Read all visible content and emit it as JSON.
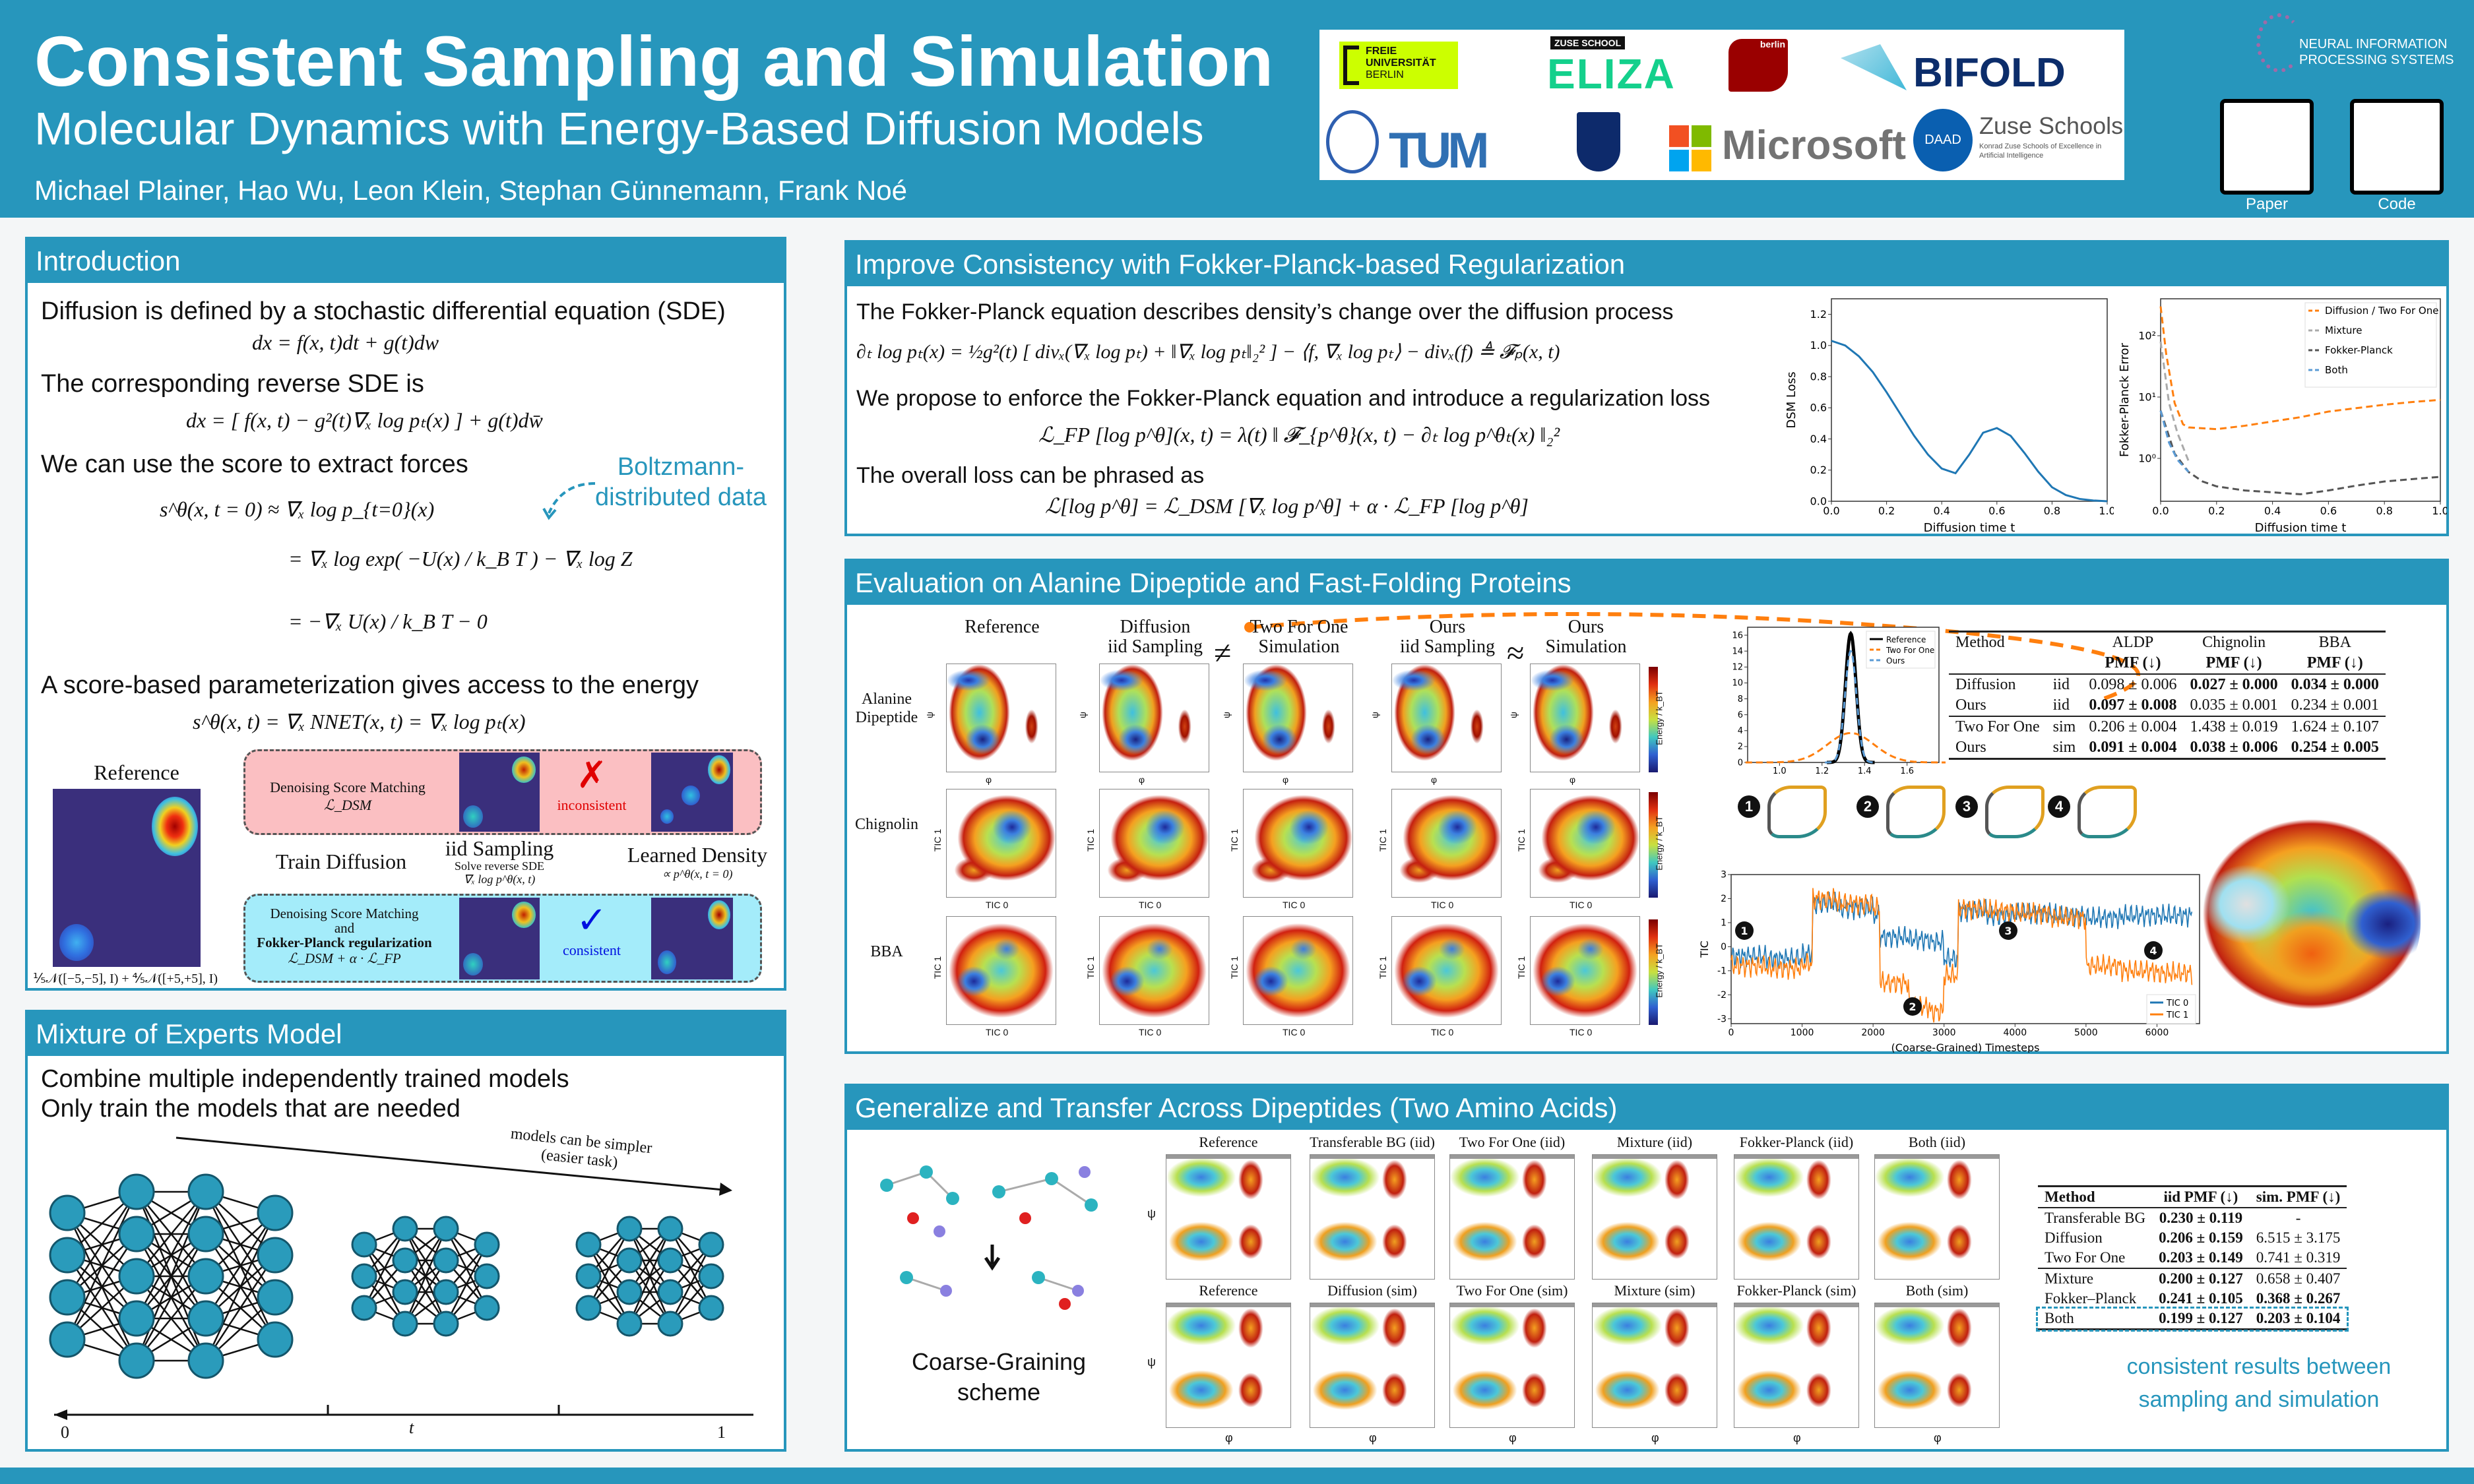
{
  "header": {
    "title": "Consistent Sampling and Simulation",
    "subtitle": "Molecular Dynamics with Energy-Based Diffusion Models",
    "authors": "Michael Plainer, Hao Wu, Leon Klein, Stephan Günnemann, Frank Noé",
    "logos": [
      "FREIE UNIVERSITÄT BERLIN",
      "ZUSE SCHOOL ELIZA",
      "TU berlin",
      "BIFOLD",
      "Shanghai Jiao Tong University",
      "TUM",
      "Rice",
      "Microsoft",
      "DAAD",
      "Zuse Schools",
      "Konrad Zuse Schools of Excellence in Artificial Intelligence",
      "NEURAL INFORMATION PROCESSING SYSTEMS"
    ],
    "qr": [
      {
        "label": "Paper"
      },
      {
        "label": "Code"
      }
    ]
  },
  "intro": {
    "title": "Introduction",
    "l1": "Diffusion is defined by a stochastic differential equation (SDE)",
    "eq1": "dx = f(x, t)dt + g(t)dw",
    "l2": "The corresponding reverse SDE is",
    "eq2": "dx = [ f(x, t) − g²(t)∇ₓ log pₜ(x) ] + g(t)dw̄",
    "l3": "We can use the score to extract forces",
    "boltz": "Boltzmann-\ndistributed data",
    "eq3a": "s^θ(x, t = 0) ≈ ∇ₓ log p_{t=0}(x)",
    "eq3b": "= ∇ₓ log exp( −U(x) / k_B T ) − ∇ₓ log Z",
    "eq3c": "= −∇ₓ U(x) / k_B T − 0",
    "l4": "A score-based parameterization gives access to the energy",
    "eq4": "s^θ(x, t) = ∇ₓ NNET(x, t) = ∇ₓ log pₜ(x)",
    "diagram": {
      "reference": "Reference",
      "mixture": "⅕𝒩([−5,−5], I) + ⅘𝒩([+5,+5], I)",
      "top_box": "Denoising Score Matching",
      "top_loss": "ℒ_DSM",
      "inconsistent": "inconsistent",
      "train": "Train Diffusion",
      "iid": "iid Sampling",
      "iid_sub1": "Solve reverse SDE",
      "iid_sub2": "∇ₓ log p^θ(x, t)",
      "learned": "Learned Density",
      "learned_sub": "∝ p^θ(x, t = 0)",
      "bot_box1": "Denoising Score Matching",
      "bot_box2": "and",
      "bot_box3": "Fokker-Planck regularization",
      "bot_loss": "ℒ_DSM + α · ℒ_FP",
      "consistent": "consistent",
      "cross": "✗",
      "check": "✓"
    }
  },
  "moe": {
    "title": "Mixture of Experts Model",
    "l1": "Combine multiple independently trained models",
    "l2": "Only train the models that are needed",
    "arrow_label": "models can be simpler\n(easier task)",
    "axis": {
      "start": "0",
      "mid": "t",
      "end": "1"
    }
  },
  "fp": {
    "title": "Improve Consistency with Fokker-Planck-based Regularization",
    "l1": "The Fokker-Planck equation describes density’s change over the diffusion process",
    "eq1": "∂ₜ log pₜ(x) = ½g²(t) [ divₓ(∇ₓ log pₜ) + ‖∇ₓ log pₜ‖₂² ] − ⟨f, ∇ₓ log pₜ⟩ − divₓ(f) ≜ 𝓕ₚ(x, t)",
    "l2": "We propose to enforce the Fokker-Planck equation and introduce a regularization loss",
    "eq2": "ℒ_FP [log p^θ](x, t) = λ(t) ‖ 𝓕_{p^θ}(x, t) − ∂ₜ log p^θₜ(x) ‖₂²",
    "l3": "The overall loss can be phrased as",
    "eq3": "ℒ[log p^θ] = ℒ_DSM [∇ₓ log p^θ] + α · ℒ_FP [log p^θ]"
  },
  "eval": {
    "title": "Evaluation on Alanine Dipeptide and Fast-Folding Proteins",
    "cols": [
      "Reference",
      "Diffusion\niid Sampling",
      "Two For One\nSimulation",
      "Ours\niid Sampling",
      "Ours\nSimulation"
    ],
    "neq": "≠",
    "approx": "≈",
    "rows": [
      "Alanine\nDipeptide",
      "Chignolin",
      "BBA"
    ],
    "ala_axes": {
      "x": "φ",
      "y": "ψ"
    },
    "tic_axes": {
      "x": "TIC 0",
      "y": "TIC 1"
    },
    "cbar_label": "Energy / k_BT",
    "table": {
      "head": [
        "Method",
        "",
        "ALDP",
        "Chignolin",
        "BBA"
      ],
      "sub": "PMF (↓)",
      "rows": [
        {
          "m": "Diffusion",
          "s": "iid",
          "v": [
            "0.098 ± 0.006",
            "0.027 ± 0.000",
            "0.034 ± 0.000"
          ],
          "bold": [
            false,
            true,
            true
          ]
        },
        {
          "m": "Ours",
          "s": "iid",
          "v": [
            "0.097 ± 0.008",
            "0.035 ± 0.001",
            "0.234 ± 0.001"
          ],
          "bold": [
            true,
            false,
            false
          ]
        },
        {
          "m": "Two For One",
          "s": "sim",
          "v": [
            "0.206 ± 0.004",
            "1.438 ± 0.019",
            "1.624 ± 0.107"
          ],
          "bold": [
            false,
            false,
            false
          ]
        },
        {
          "m": "Ours",
          "s": "sim",
          "v": [
            "0.091 ± 0.004",
            "0.038 ± 0.006",
            "0.254 ± 0.005"
          ],
          "bold": [
            true,
            true,
            true
          ]
        }
      ]
    },
    "markers": [
      "1",
      "2",
      "3",
      "4"
    ]
  },
  "gen": {
    "title": "Generalize and Transfer Across Dipeptides (Two Amino Acids)",
    "cg": "Coarse-Graining\nscheme",
    "row1": [
      "Reference",
      "Transferable BG (iid)",
      "Two For One (iid)",
      "Mixture (iid)",
      "Fokker-Planck (iid)",
      "Both (iid)"
    ],
    "row2": [
      "Reference",
      "Diffusion (sim)",
      "Two For One (sim)",
      "Mixture (sim)",
      "Fokker-Planck (sim)",
      "Both (sim)"
    ],
    "axes": {
      "x": "φ",
      "y": "ψ"
    },
    "table": {
      "head": [
        "Method",
        "iid PMF (↓)",
        "sim. PMF (↓)"
      ],
      "rows": [
        {
          "m": "Transferable BG",
          "a": "0.230 ± 0.119",
          "b": "-",
          "ba": true,
          "bb": false
        },
        {
          "m": "Diffusion",
          "a": "0.206 ± 0.159",
          "b": "6.515 ± 3.175",
          "ba": true,
          "bb": false
        },
        {
          "m": "Two For One",
          "a": "0.203 ± 0.149",
          "b": "0.741 ± 0.319",
          "ba": true,
          "bb": false
        },
        {
          "m": "Mixture",
          "a": "0.200 ± 0.127",
          "b": "0.658 ± 0.407",
          "ba": true,
          "bb": false
        },
        {
          "m": "Fokker–Planck",
          "a": "0.241 ± 0.105",
          "b": "0.368 ± 0.267",
          "ba": true,
          "bb": true
        },
        {
          "m": "Both",
          "a": "0.199 ± 0.127",
          "b": "0.203 ± 0.104",
          "ba": true,
          "bb": true
        }
      ]
    },
    "caption": "consistent results between\nsampling and simulation"
  },
  "chart_data": [
    {
      "id": "dsm",
      "type": "line",
      "xlabel": "Diffusion time t",
      "ylabel": "DSM Loss",
      "xlim": [
        0,
        1
      ],
      "ylim": [
        0,
        1.3
      ],
      "xticks": [
        0,
        0.2,
        0.4,
        0.6,
        0.8,
        1.0
      ],
      "yticks": [
        0,
        0.2,
        0.4,
        0.6,
        0.8,
        1.0,
        1.2
      ],
      "series": [
        {
          "name": "DSM Loss",
          "color": "#1f77b4",
          "x": [
            0,
            0.05,
            0.1,
            0.15,
            0.2,
            0.25,
            0.3,
            0.35,
            0.4,
            0.45,
            0.5,
            0.55,
            0.6,
            0.65,
            0.7,
            0.75,
            0.8,
            0.85,
            0.9,
            0.95,
            1.0
          ],
          "y": [
            1.03,
            1.0,
            0.93,
            0.83,
            0.7,
            0.56,
            0.42,
            0.3,
            0.21,
            0.18,
            0.3,
            0.44,
            0.47,
            0.42,
            0.31,
            0.19,
            0.09,
            0.04,
            0.015,
            0.005,
            0.0
          ]
        }
      ]
    },
    {
      "id": "fperr",
      "type": "line",
      "scale": "log",
      "xlabel": "Diffusion time t",
      "ylabel": "Fokker-Planck Error",
      "xlim": [
        0,
        1
      ],
      "ylim": [
        0.2,
        400
      ],
      "xticks": [
        0,
        0.2,
        0.4,
        0.6,
        0.8,
        1.0
      ],
      "yticks": [
        1,
        10,
        100
      ],
      "ytick_labels": [
        "10⁰",
        "10¹",
        "10²"
      ],
      "legend": "top-right",
      "series": [
        {
          "name": "Diffusion / Two For One",
          "color": "#ff7f0e",
          "x": [
            0,
            0.02,
            0.05,
            0.08,
            0.1,
            0.2,
            0.3,
            0.4,
            0.5,
            0.6,
            0.7,
            0.8,
            0.9,
            1.0
          ],
          "y": [
            300,
            50,
            8,
            3.6,
            3.2,
            3.0,
            3.4,
            4.0,
            4.7,
            5.8,
            6.6,
            7.5,
            8.3,
            9.0
          ]
        },
        {
          "name": "Mixture",
          "color": "#aaaaaa",
          "x": [
            0,
            0.03,
            0.06,
            0.1
          ],
          "y": [
            80,
            8,
            2.6,
            0.9
          ]
        },
        {
          "name": "Fokker-Planck",
          "color": "#555555",
          "x": [
            0,
            0.05,
            0.1,
            0.15,
            0.2,
            0.3,
            0.4,
            0.5,
            0.6,
            0.7,
            0.8,
            0.9,
            1.0
          ],
          "y": [
            6,
            1.2,
            0.6,
            0.42,
            0.35,
            0.3,
            0.28,
            0.26,
            0.3,
            0.36,
            0.42,
            0.46,
            0.5
          ]
        },
        {
          "name": "Both",
          "color": "#5b9bd5",
          "x": [
            0,
            0.03,
            0.06,
            0.1
          ],
          "y": [
            6,
            1.8,
            0.95,
            0.6
          ]
        }
      ]
    },
    {
      "id": "bond",
      "type": "line",
      "xlim": [
        0.85,
        1.75
      ],
      "ylim": [
        0,
        17
      ],
      "xticks": [
        1.0,
        1.2,
        1.4,
        1.6
      ],
      "yticks": [
        0,
        2,
        4,
        6,
        8,
        10,
        12,
        14,
        16
      ],
      "legend": "top-right",
      "series": [
        {
          "name": "Reference",
          "color": "#000000",
          "gaussian": {
            "mean": 1.335,
            "std": 0.025,
            "peak": 16.2
          }
        },
        {
          "name": "Two For One",
          "color": "#ff7f0e",
          "gaussian": {
            "mean": 1.335,
            "std": 0.11,
            "peak": 3.7
          }
        },
        {
          "name": "Ours",
          "color": "#5b9bd5",
          "gaussian": {
            "mean": 1.335,
            "std": 0.027,
            "peak": 14.0
          }
        }
      ]
    },
    {
      "id": "tic",
      "type": "line",
      "xlabel": "(Coarse-Grained) Timesteps",
      "ylabel": "TIC",
      "xlim": [
        0,
        6600
      ],
      "ylim": [
        -3.2,
        3
      ],
      "xticks": [
        0,
        1000,
        2000,
        3000,
        4000,
        5000,
        6000
      ],
      "yticks": [
        -3,
        -2,
        -1,
        0,
        1,
        2,
        3
      ],
      "legend": "bottom-right",
      "series": [
        {
          "name": "TIC 0",
          "color": "#1f77b4",
          "x": [
            0,
            500,
            1000,
            1150,
            1500,
            2000,
            2100,
            2500,
            2800,
            3000,
            3200,
            3600,
            4000,
            4500,
            5000,
            5500,
            6000,
            6500
          ],
          "y": [
            -0.4,
            -0.5,
            -0.3,
            1.8,
            1.6,
            1.3,
            0.4,
            0.3,
            0.2,
            -0.5,
            1.5,
            1.3,
            1.4,
            1.3,
            1.2,
            1.3,
            1.3,
            1.4
          ]
        },
        {
          "name": "TIC 1",
          "color": "#ff7f0e",
          "x": [
            0,
            500,
            1000,
            1150,
            1500,
            2000,
            2100,
            2500,
            2800,
            3000,
            3200,
            3600,
            4000,
            4500,
            5000,
            5500,
            6000,
            6500
          ],
          "y": [
            -0.8,
            -0.9,
            -0.7,
            2.0,
            1.8,
            1.6,
            -1.5,
            -2.5,
            -2.7,
            -1.2,
            1.6,
            1.5,
            1.4,
            1.2,
            -0.8,
            -1.0,
            -1.1,
            -1.0
          ]
        }
      ]
    }
  ]
}
